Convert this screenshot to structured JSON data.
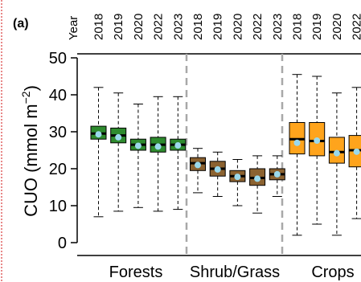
{
  "panel_label": "(a)",
  "year_header": "Year",
  "colors": {
    "Forests": "#2e8b2e",
    "Shrub/Grass": "#8b6230",
    "Crops": "#ffa41c",
    "median_point": "#9ad9ec",
    "divider": "#a8a8a8",
    "left_border": "#e06060"
  },
  "chart_data": {
    "type": "box",
    "ylabel": "CUO (mmol m",
    "ylabel_sup": "−2",
    "ylabel_close": ")",
    "ylim": [
      -2,
      52
    ],
    "yticks": [
      "0",
      "10",
      "20",
      "30",
      "40",
      "50"
    ],
    "groups": [
      "Forests",
      "Shrub/Grass",
      "Crops"
    ],
    "boxes": [
      {
        "group": "Forests",
        "year": "2018",
        "min": 7,
        "q1": 28,
        "median": 29.5,
        "q3": 31.5,
        "max": 42,
        "mean": 29.3
      },
      {
        "group": "Forests",
        "year": "2019",
        "min": 8.5,
        "q1": 27,
        "median": 29,
        "q3": 31,
        "max": 40.5,
        "mean": 28.5
      },
      {
        "group": "Forests",
        "year": "2020",
        "min": 9.5,
        "q1": 25,
        "median": 26.5,
        "q3": 28,
        "max": 37.5,
        "mean": 26.2
      },
      {
        "group": "Forests",
        "year": "2022",
        "min": 8.5,
        "q1": 24.5,
        "median": 26.5,
        "q3": 28.5,
        "max": 39.5,
        "mean": 26
      },
      {
        "group": "Forests",
        "year": "2023",
        "min": 9,
        "q1": 25,
        "median": 26.5,
        "q3": 28,
        "max": 39.5,
        "mean": 26.3
      },
      {
        "group": "Shrub/Grass",
        "year": "2018",
        "min": 13.5,
        "q1": 19.5,
        "median": 21.5,
        "q3": 23,
        "max": 25.5,
        "mean": 21
      },
      {
        "group": "Shrub/Grass",
        "year": "2019",
        "min": 12.5,
        "q1": 18,
        "median": 20,
        "q3": 22,
        "max": 24.5,
        "mean": 19.8
      },
      {
        "group": "Shrub/Grass",
        "year": "2020",
        "min": 10,
        "q1": 16.5,
        "median": 18,
        "q3": 19.5,
        "max": 22.5,
        "mean": 17.8
      },
      {
        "group": "Shrub/Grass",
        "year": "2022",
        "min": 8,
        "q1": 15.5,
        "median": 17.5,
        "q3": 20,
        "max": 23.5,
        "mean": 17.3
      },
      {
        "group": "Shrub/Grass",
        "year": "2023",
        "min": 12.5,
        "q1": 17,
        "median": 18.5,
        "q3": 20,
        "max": 23.5,
        "mean": 18.5
      },
      {
        "group": "Crops",
        "year": "2018",
        "min": 2,
        "q1": 24,
        "median": 28,
        "q3": 32.5,
        "max": 45.5,
        "mean": 27
      },
      {
        "group": "Crops",
        "year": "2019",
        "min": 5,
        "q1": 23.5,
        "median": 27.5,
        "q3": 32.5,
        "max": 45,
        "mean": 27.6
      },
      {
        "group": "Crops",
        "year": "2020",
        "min": 2,
        "q1": 21.5,
        "median": 24.5,
        "q3": 28.5,
        "max": 40.5,
        "mean": 24.2
      },
      {
        "group": "Crops",
        "year": "2022",
        "min": 6.5,
        "q1": 20.5,
        "median": 25,
        "q3": 29,
        "max": 42,
        "mean": 24.6
      }
    ]
  }
}
